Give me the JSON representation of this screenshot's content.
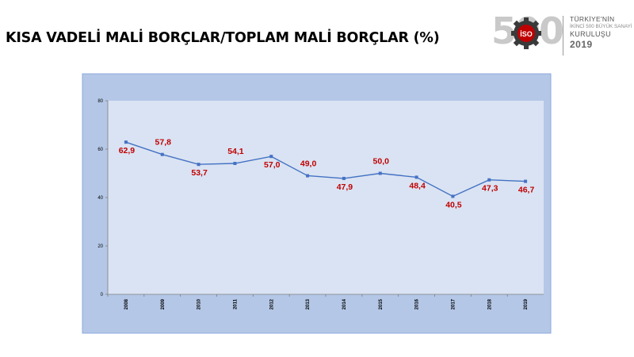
{
  "slide": {
    "title": "KISA VADELİ MALİ BORÇLAR/TOPLAM MALİ BORÇLAR (%)"
  },
  "logo": {
    "number": "500",
    "badge": "İSO",
    "line1": "TÜRKİYE'NİN",
    "line2": "İKİNCİ 500 BÜYÜK SANAYİ",
    "line3": "KURULUŞU",
    "line4": "2019"
  },
  "chart_data": {
    "type": "line",
    "title": "",
    "xlabel": "",
    "ylabel": "",
    "categories": [
      "2008",
      "2009",
      "2010",
      "2011",
      "2012",
      "2013",
      "2014",
      "2015",
      "2016",
      "2017",
      "2018",
      "2019"
    ],
    "series": [
      {
        "values": [
          62.9,
          57.8,
          53.7,
          54.1,
          57.0,
          49.0,
          47.9,
          50.0,
          48.4,
          40.5,
          47.3,
          46.7
        ],
        "data_labels": [
          "62,9",
          "57,8",
          "53,7",
          "54,1",
          "57,0",
          "49,0",
          "47,9",
          "50,0",
          "48,4",
          "40,5",
          "47,3",
          "46,7"
        ],
        "color": "#4472c4"
      }
    ],
    "ylim": [
      0,
      80
    ],
    "yticks": [
      "0",
      "20",
      "40",
      "60",
      "80"
    ],
    "label_positions": [
      "below",
      "above",
      "below",
      "above",
      "below",
      "above",
      "below",
      "above",
      "below",
      "below",
      "below",
      "below"
    ],
    "grid": false,
    "colors": {
      "outer_background": "#b4c7e7",
      "plot_background": "#dae3f3",
      "line": "#4472c4",
      "data_label": "#c00000"
    }
  }
}
